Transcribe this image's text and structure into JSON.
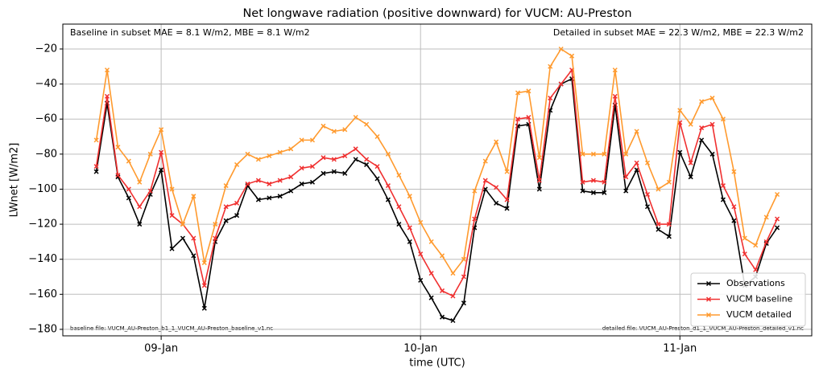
{
  "chart_data": {
    "type": "line",
    "title": "Net longwave radiation (positive downward) for VUCM: AU-Preston",
    "xlabel": "time (UTC)",
    "ylabel": "LWnet [W/m2]",
    "annotations": [
      "Baseline in subset MAE = 8.1 W/m2, MBE = 8.1 W/m2",
      "Detailed in subset MAE = 22.3 W/m2, MBE = 22.3 W/m2",
      "baseline file: VUCM_AU-Preston_b1_1_VUCM_AU-Preston_baseline_v1.nc",
      "detailed file: VUCM_AU-Preston_d1_1_VUCM_AU-Preston_detailed_v1.nc"
    ],
    "x": [
      -6,
      -5,
      -4,
      -3,
      -2,
      -1,
      0,
      1,
      2,
      3,
      4,
      5,
      6,
      7,
      8,
      9,
      10,
      11,
      12,
      13,
      14,
      15,
      16,
      17,
      18,
      19,
      20,
      21,
      22,
      23,
      24,
      25,
      26,
      27,
      28,
      29,
      30,
      31,
      32,
      33,
      34,
      35,
      36,
      37,
      38,
      39,
      40,
      41,
      42,
      43,
      44,
      45,
      46,
      47,
      48,
      49,
      50,
      51,
      52,
      53,
      54,
      55,
      56,
      57
    ],
    "xlim": [
      -9.1,
      60.2
    ],
    "xticks": [
      {
        "value": 0,
        "label": "09-Jan"
      },
      {
        "value": 24,
        "label": "10-Jan"
      },
      {
        "value": 48,
        "label": "11-Jan"
      }
    ],
    "ylim": [
      -183.7,
      -5.8
    ],
    "yticks": [
      {
        "value": -20,
        "label": "−20"
      },
      {
        "value": -40,
        "label": "−40"
      },
      {
        "value": -60,
        "label": "−60"
      },
      {
        "value": -80,
        "label": "−80"
      },
      {
        "value": -100,
        "label": "−100"
      },
      {
        "value": -120,
        "label": "−120"
      },
      {
        "value": -140,
        "label": "−140"
      },
      {
        "value": -160,
        "label": "−160"
      },
      {
        "value": -180,
        "label": "−180"
      }
    ],
    "grid": true,
    "legend": "lower right",
    "series": [
      {
        "name": "Observations",
        "color": "#000000",
        "values": [
          -90,
          -51,
          -93,
          -105,
          -120,
          -103,
          -89,
          -134,
          -128,
          -138,
          -168,
          -130,
          -118,
          -115,
          -98,
          -106,
          -105,
          -104,
          -101,
          -97,
          -96,
          -91,
          -90,
          -91,
          -83,
          -86,
          -94,
          -106,
          -120,
          -130,
          -152,
          -162,
          -173,
          -175,
          -165,
          -122,
          -100,
          -108,
          -111,
          -64,
          -63,
          -100,
          -55,
          -40,
          -37,
          -101,
          -102,
          -102,
          -52,
          -101,
          -89,
          -110,
          -123,
          -127,
          -79,
          -93,
          -72,
          -80,
          -106,
          -118,
          -155,
          -150,
          -131,
          -122
        ]
      },
      {
        "name": "VUCM baseline",
        "color": "#f03030",
        "values": [
          -87,
          -47,
          -92,
          -100,
          -110,
          -101,
          -79,
          -115,
          -120,
          -128,
          -155,
          -128,
          -110,
          -108,
          -97,
          -95,
          -97,
          -95,
          -93,
          -88,
          -87,
          -82,
          -83,
          -81,
          -77,
          -83,
          -87,
          -98,
          -110,
          -122,
          -137,
          -148,
          -158,
          -161,
          -150,
          -117,
          -95,
          -99,
          -106,
          -60,
          -59,
          -95,
          -48,
          -40,
          -32,
          -96,
          -95,
          -96,
          -47,
          -93,
          -85,
          -103,
          -120,
          -120,
          -62,
          -85,
          -65,
          -63,
          -98,
          -110,
          -137,
          -146,
          -130,
          -117
        ]
      },
      {
        "name": "VUCM detailed",
        "color": "#ff9a2e",
        "values": [
          -72,
          -32,
          -76,
          -84,
          -96,
          -80,
          -66,
          -100,
          -120,
          -104,
          -142,
          -120,
          -98,
          -86,
          -80,
          -83,
          -81,
          -79,
          -77,
          -72,
          -72,
          -64,
          -67,
          -66,
          -59,
          -63,
          -70,
          -80,
          -92,
          -104,
          -119,
          -130,
          -138,
          -148,
          -140,
          -101,
          -84,
          -73,
          -90,
          -45,
          -44,
          -82,
          -30,
          -20,
          -24,
          -80,
          -80,
          -80,
          -32,
          -80,
          -67,
          -85,
          -100,
          -96,
          -55,
          -63,
          -50,
          -48,
          -60,
          -90,
          -128,
          -132,
          -116,
          -103
        ]
      }
    ]
  }
}
